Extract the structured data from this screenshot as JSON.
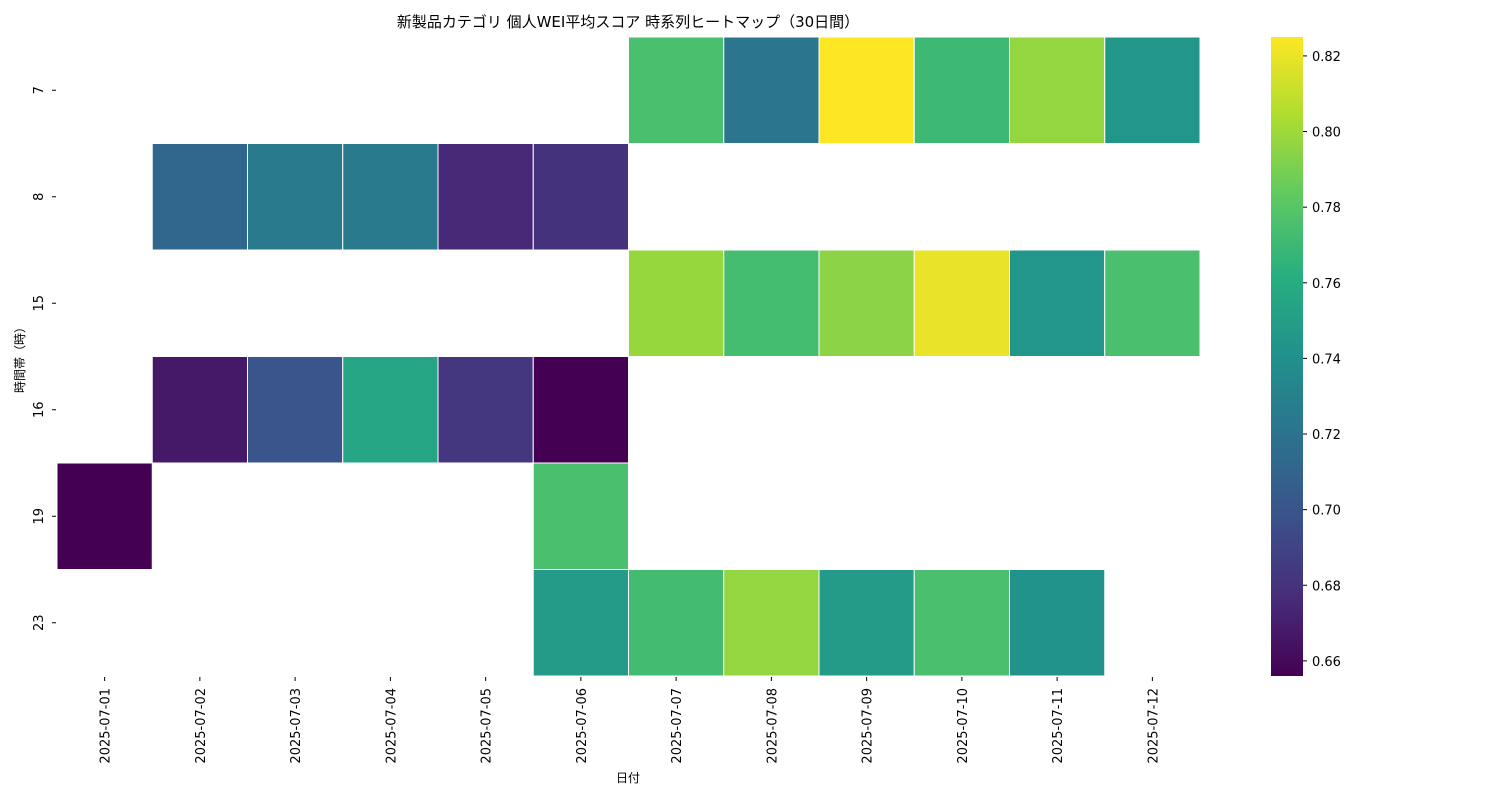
{
  "chart_data": {
    "type": "heatmap",
    "title": "新製品カテゴリ 個人WEI平均スコア 時系列ヒートマップ（30日間）",
    "xlabel": "日付",
    "ylabel": "時間帯（時）",
    "x_categories": [
      "2025-07-01",
      "2025-07-02",
      "2025-07-03",
      "2025-07-04",
      "2025-07-05",
      "2025-07-06",
      "2025-07-07",
      "2025-07-08",
      "2025-07-09",
      "2025-07-10",
      "2025-07-11",
      "2025-07-12"
    ],
    "y_categories": [
      "7",
      "8",
      "15",
      "16",
      "19",
      "23"
    ],
    "values": [
      [
        null,
        null,
        null,
        null,
        null,
        null,
        0.775,
        0.722,
        0.825,
        0.77,
        0.797,
        0.745
      ],
      [
        null,
        0.712,
        0.725,
        0.725,
        0.675,
        0.68,
        null,
        null,
        null,
        null,
        null,
        null
      ],
      [
        null,
        null,
        null,
        null,
        null,
        null,
        0.798,
        0.773,
        0.795,
        0.82,
        0.745,
        0.775
      ],
      [
        null,
        0.667,
        0.7,
        0.755,
        0.683,
        0.656,
        null,
        null,
        null,
        null,
        null,
        null
      ],
      [
        0.656,
        null,
        null,
        null,
        null,
        0.775,
        null,
        null,
        null,
        null,
        null,
        null
      ],
      [
        null,
        null,
        null,
        null,
        null,
        0.748,
        0.772,
        0.797,
        0.748,
        0.775,
        0.742,
        null
      ]
    ],
    "colormap": "viridis",
    "vmin": 0.656,
    "vmax": 0.825,
    "colorbar_ticks": [
      "0.66",
      "0.68",
      "0.70",
      "0.72",
      "0.74",
      "0.76",
      "0.78",
      "0.80",
      "0.82"
    ],
    "legend_position": "right"
  }
}
